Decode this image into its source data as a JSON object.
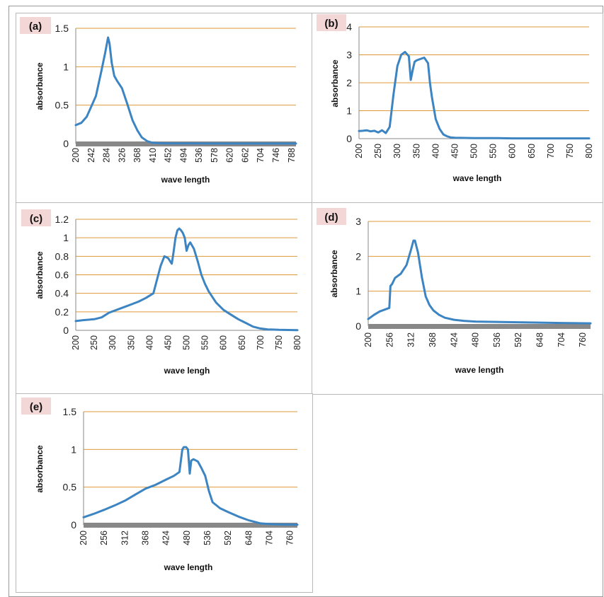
{
  "colors": {
    "series": "#3d84c2",
    "grid": "#e0993a",
    "axis_bar": "#888888",
    "tag_bg": "#f3d6d6"
  },
  "chart_data": [
    {
      "panel": "(a)",
      "type": "line",
      "xlabel": "wave length",
      "ylabel": "absorbance",
      "xlim": [
        200,
        800
      ],
      "ylim": [
        0,
        1.5
      ],
      "yticks": [
        "0",
        "0.5",
        "1",
        "1.5"
      ],
      "xticks": [
        "200",
        "242",
        "284",
        "326",
        "368",
        "410",
        "452",
        "494",
        "536",
        "578",
        "620",
        "662",
        "704",
        "746",
        "788"
      ],
      "series": [
        {
          "x": [
            200,
            215,
            230,
            242,
            255,
            270,
            280,
            288,
            292,
            298,
            305,
            312,
            326,
            340,
            355,
            368,
            380,
            395,
            410,
            430,
            452,
            500,
            600,
            700,
            800
          ],
          "y": [
            0.24,
            0.27,
            0.35,
            0.48,
            0.62,
            0.95,
            1.18,
            1.38,
            1.3,
            1.05,
            0.88,
            0.82,
            0.72,
            0.52,
            0.3,
            0.17,
            0.08,
            0.03,
            0.01,
            0.005,
            0.003,
            0.002,
            0.001,
            0.001,
            0.001
          ]
        }
      ]
    },
    {
      "panel": "(b)",
      "type": "line",
      "xlabel": "wave length",
      "ylabel": "absorbance",
      "xlim": [
        200,
        800
      ],
      "ylim": [
        0,
        4
      ],
      "yticks": [
        "0",
        "1",
        "2",
        "3",
        "4"
      ],
      "xticks": [
        "200",
        "250",
        "300",
        "350",
        "400",
        "450",
        "500",
        "550",
        "600",
        "650",
        "700",
        "750",
        "800"
      ],
      "series": [
        {
          "x": [
            200,
            210,
            220,
            230,
            240,
            250,
            260,
            270,
            280,
            290,
            300,
            310,
            320,
            330,
            335,
            340,
            345,
            350,
            360,
            370,
            380,
            385,
            390,
            400,
            410,
            420,
            430,
            440,
            450,
            500,
            560,
            600,
            700,
            800
          ],
          "y": [
            0.27,
            0.28,
            0.3,
            0.26,
            0.28,
            0.22,
            0.3,
            0.2,
            0.42,
            1.6,
            2.6,
            3.0,
            3.1,
            2.95,
            2.1,
            2.45,
            2.75,
            2.8,
            2.85,
            2.9,
            2.7,
            2.0,
            1.5,
            0.7,
            0.35,
            0.15,
            0.08,
            0.04,
            0.03,
            0.02,
            0.02,
            0.01,
            0.01,
            0.01
          ]
        }
      ]
    },
    {
      "panel": "(c)",
      "type": "line",
      "xlabel": "wave lengh",
      "ylabel": "absorbance",
      "xlim": [
        200,
        800
      ],
      "ylim": [
        0,
        1.2
      ],
      "yticks": [
        "0",
        "0.2",
        "0.4",
        "0.6",
        "0.8",
        "1",
        "1.2"
      ],
      "xticks": [
        "200",
        "250",
        "300",
        "350",
        "400",
        "450",
        "500",
        "550",
        "600",
        "650",
        "700",
        "750",
        "800"
      ],
      "series": [
        {
          "x": [
            200,
            220,
            250,
            270,
            290,
            310,
            330,
            350,
            370,
            390,
            410,
            420,
            430,
            440,
            450,
            460,
            465,
            470,
            475,
            480,
            485,
            490,
            495,
            500,
            505,
            510,
            520,
            530,
            540,
            550,
            560,
            580,
            600,
            620,
            640,
            660,
            680,
            700,
            720,
            750,
            800
          ],
          "y": [
            0.1,
            0.11,
            0.12,
            0.14,
            0.19,
            0.22,
            0.25,
            0.28,
            0.31,
            0.35,
            0.4,
            0.55,
            0.7,
            0.8,
            0.78,
            0.72,
            0.85,
            1.0,
            1.08,
            1.1,
            1.08,
            1.05,
            1.0,
            0.86,
            0.92,
            0.95,
            0.88,
            0.75,
            0.6,
            0.5,
            0.42,
            0.3,
            0.22,
            0.17,
            0.12,
            0.08,
            0.04,
            0.02,
            0.01,
            0.005,
            0.002
          ]
        }
      ]
    },
    {
      "panel": "(d)",
      "type": "line",
      "xlabel": "wave length",
      "ylabel": "absorbance",
      "xlim": [
        200,
        780
      ],
      "ylim": [
        0,
        3
      ],
      "yticks": [
        "0",
        "1",
        "2",
        "3"
      ],
      "xticks": [
        "200",
        "256",
        "312",
        "368",
        "424",
        "480",
        "536",
        "592",
        "648",
        "704",
        "760"
      ],
      "series": [
        {
          "x": [
            200,
            215,
            230,
            245,
            255,
            258,
            262,
            270,
            285,
            300,
            312,
            318,
            322,
            330,
            340,
            350,
            360,
            370,
            385,
            400,
            424,
            450,
            480,
            536,
            592,
            648,
            704,
            780
          ],
          "y": [
            0.2,
            0.32,
            0.42,
            0.48,
            0.52,
            1.15,
            1.2,
            1.38,
            1.5,
            1.75,
            2.2,
            2.45,
            2.45,
            2.1,
            1.4,
            0.85,
            0.6,
            0.45,
            0.32,
            0.24,
            0.18,
            0.15,
            0.13,
            0.12,
            0.11,
            0.1,
            0.09,
            0.08
          ]
        }
      ]
    },
    {
      "panel": "(e)",
      "type": "line",
      "xlabel": "wave length",
      "ylabel": "absorbance",
      "xlim": [
        200,
        780
      ],
      "ylim": [
        0,
        1.5
      ],
      "yticks": [
        "0",
        "0.5",
        "1",
        "1.5"
      ],
      "xticks": [
        "200",
        "256",
        "312",
        "368",
        "424",
        "480",
        "536",
        "592",
        "648",
        "704",
        "760"
      ],
      "series": [
        {
          "x": [
            200,
            230,
            256,
            290,
            312,
            340,
            368,
            395,
            424,
            445,
            460,
            468,
            472,
            478,
            483,
            488,
            492,
            498,
            510,
            520,
            530,
            540,
            550,
            570,
            592,
            620,
            648,
            680,
            704,
            740,
            780
          ],
          "y": [
            0.1,
            0.15,
            0.2,
            0.27,
            0.32,
            0.4,
            0.48,
            0.53,
            0.6,
            0.65,
            0.7,
            1.0,
            1.03,
            1.03,
            1.0,
            0.68,
            0.85,
            0.87,
            0.84,
            0.75,
            0.65,
            0.45,
            0.3,
            0.22,
            0.17,
            0.11,
            0.06,
            0.02,
            0.01,
            0.005,
            0.002
          ]
        }
      ]
    }
  ]
}
